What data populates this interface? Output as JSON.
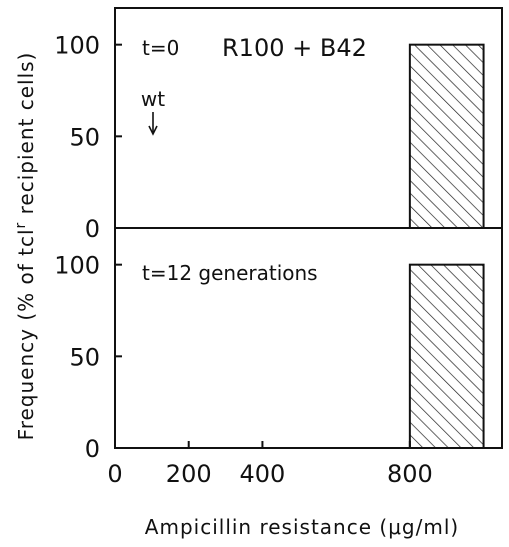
{
  "chart_data": [
    {
      "type": "bar",
      "panel": "top",
      "annotations": {
        "time": "t=0",
        "strain": "R100 + B42",
        "marker": "wt"
      },
      "x": [
        950
      ],
      "bar_range": [
        [
          800,
          1000
        ]
      ],
      "values": [
        100
      ],
      "xlim": [
        0,
        1050
      ],
      "ylim": [
        0,
        120
      ],
      "y_ticks": [
        "0",
        "50",
        "100"
      ],
      "wt_marker_x": 100,
      "hatch": "diagonal"
    },
    {
      "type": "bar",
      "panel": "bottom",
      "annotations": {
        "time": "t=12 generations"
      },
      "x": [
        950
      ],
      "bar_range": [
        [
          800,
          1000
        ]
      ],
      "values": [
        100
      ],
      "xlim": [
        0,
        1050
      ],
      "ylim": [
        0,
        120
      ],
      "y_ticks": [
        "0",
        "50",
        "100"
      ],
      "x_ticks": [
        "0",
        "200",
        "400",
        "800"
      ],
      "hatch": "diagonal"
    }
  ],
  "axes": {
    "ylabel_prefix": "Frequency (% of tcl",
    "ylabel_sup": "r",
    "ylabel_suffix": " recipient cells)",
    "xlabel": "Ampicillin resistance (μg/ml)"
  }
}
